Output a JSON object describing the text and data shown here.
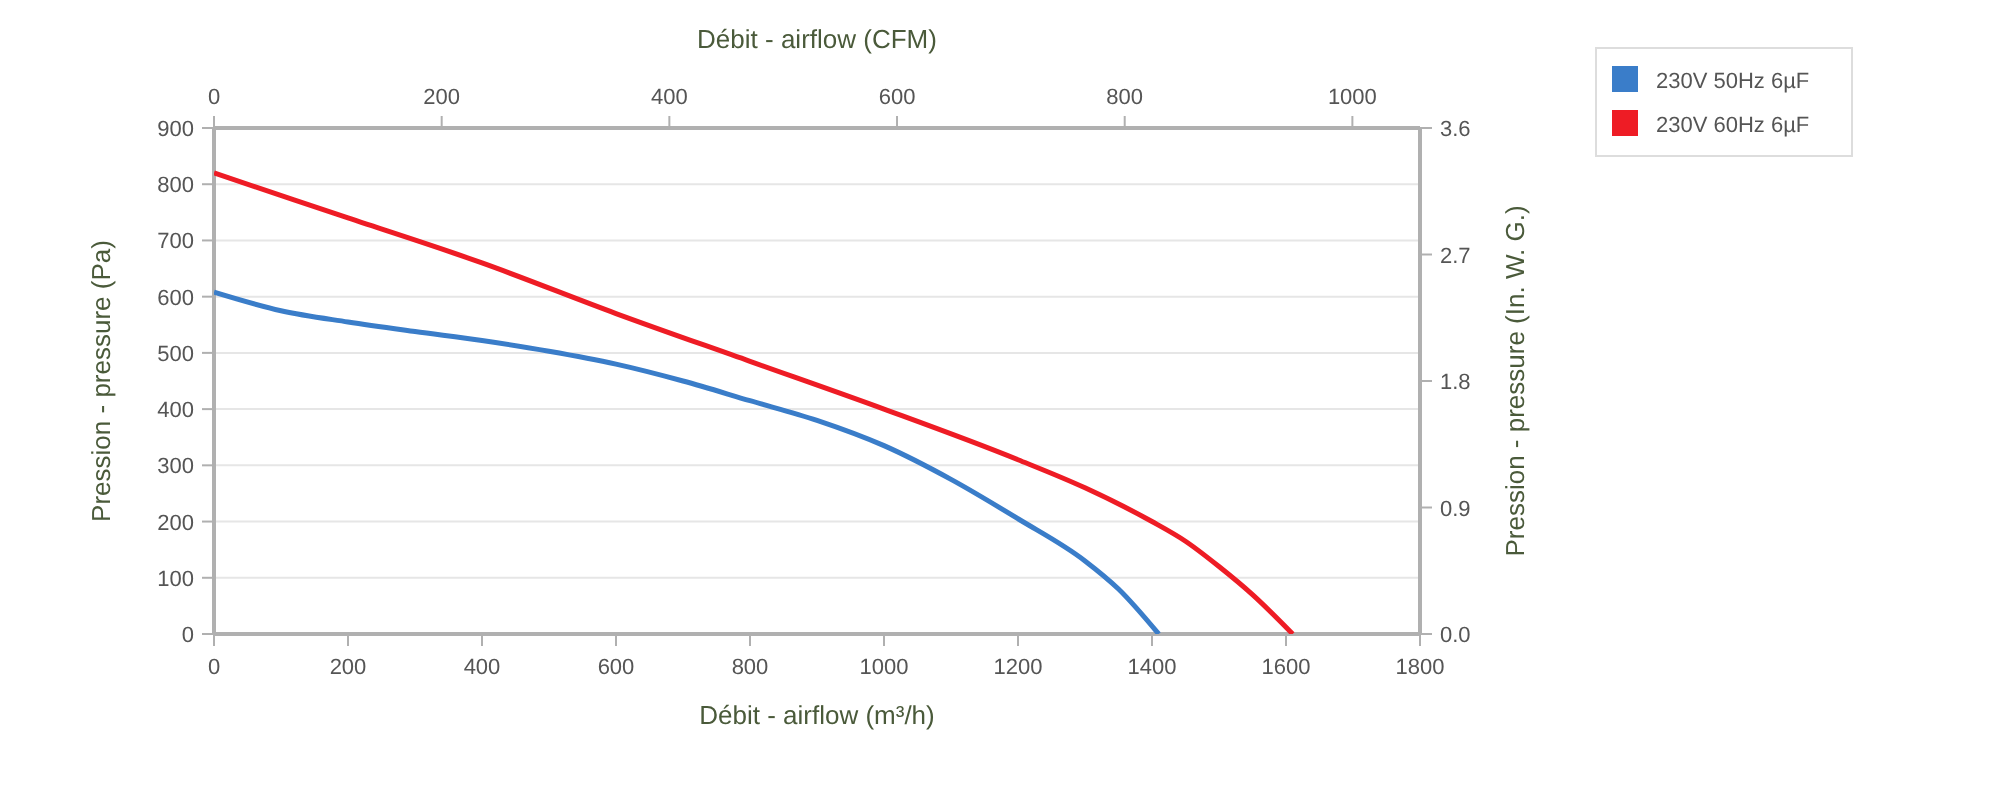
{
  "chart_data": {
    "type": "line",
    "xlabel": "Débit - airflow (m³/h)",
    "x2label": "Débit - airflow (CFM)",
    "ylabel": "Pression - pressure (Pa)",
    "y2label": "Pression - pressure (In. W. G.)",
    "xlim": [
      0,
      1800
    ],
    "xticks": [
      0,
      200,
      400,
      600,
      800,
      1000,
      1200,
      1400,
      1600,
      1800
    ],
    "x2lim": [
      0,
      1059.4
    ],
    "x2ticks": [
      0,
      200,
      400,
      600,
      800,
      1000
    ],
    "ylim": [
      0,
      900
    ],
    "yticks": [
      0,
      100,
      200,
      300,
      400,
      500,
      600,
      700,
      800,
      900
    ],
    "y2lim": [
      0,
      3.6
    ],
    "y2ticks": [
      {
        "value": 0,
        "label": "0.0"
      },
      {
        "value": 0.9,
        "label": "0.9"
      },
      {
        "value": 1.8,
        "label": "1.8"
      },
      {
        "value": 2.7,
        "label": "2.7"
      },
      {
        "value": 3.6,
        "label": "3.6"
      }
    ],
    "grid": "y",
    "legend": "top right",
    "marker": "none",
    "series": [
      {
        "name": "230V 50Hz 6µF",
        "color": "#3a7dc9",
        "x": [
          0,
          100,
          200,
          300,
          400,
          500,
          600,
          700,
          800,
          900,
          1000,
          1100,
          1200,
          1300,
          1350,
          1410
        ],
        "values": [
          608,
          575,
          555,
          538,
          522,
          503,
          480,
          450,
          415,
          380,
          335,
          275,
          205,
          130,
          80,
          0
        ]
      },
      {
        "name": "230V 60Hz 6µF",
        "color": "#ee1c25",
        "x": [
          0,
          200,
          400,
          600,
          800,
          1000,
          1200,
          1300,
          1400,
          1450,
          1500,
          1550,
          1610
        ],
        "values": [
          820,
          740,
          660,
          570,
          485,
          400,
          310,
          260,
          200,
          165,
          120,
          70,
          0
        ]
      }
    ]
  }
}
